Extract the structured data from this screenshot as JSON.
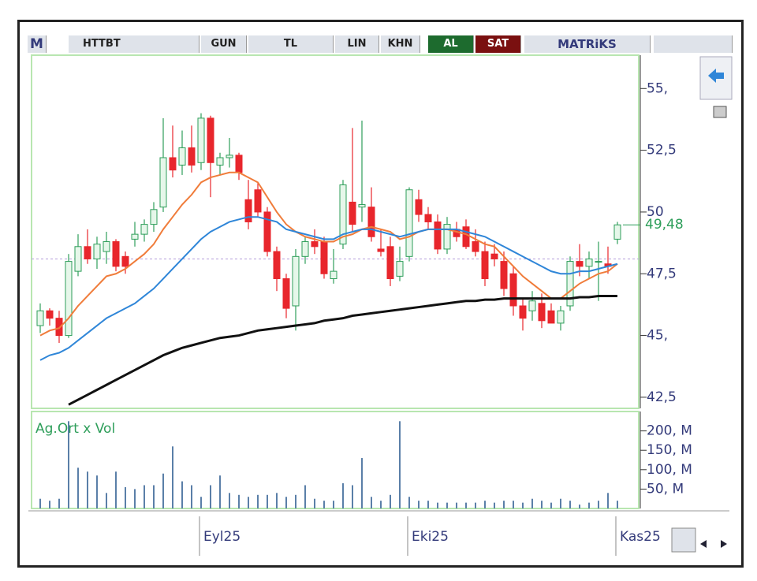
{
  "toolbar": {
    "logo": "M",
    "symbol": "HTTBT",
    "buttons": [
      "GUN",
      "TL",
      "LIN",
      "KHN"
    ],
    "buy": "AL",
    "sell": "SAT",
    "brand": "MATRiKS"
  },
  "chart_data": [
    {
      "type": "candlestick",
      "categories": [
        null,
        null,
        null,
        null,
        null,
        null,
        null,
        null,
        null,
        null,
        null,
        null,
        null,
        null,
        null,
        null,
        null,
        "Eyl25",
        null,
        null,
        null,
        null,
        null,
        null,
        null,
        null,
        null,
        null,
        null,
        null,
        null,
        null,
        null,
        null,
        null,
        null,
        null,
        null,
        null,
        "Eki25",
        null,
        null,
        null,
        null,
        null,
        null,
        null,
        null,
        null,
        null,
        null,
        null,
        null,
        null,
        null,
        null,
        null,
        null,
        null,
        null,
        null,
        "Kas25"
      ],
      "open": [
        45.4,
        46.0,
        45.7,
        45.0,
        47.6,
        48.6,
        48.1,
        48.4,
        48.8,
        48.2,
        48.9,
        49.1,
        49.5,
        50.2,
        52.2,
        51.9,
        52.6,
        52.0,
        53.8,
        51.9,
        52.2,
        52.3,
        50.5,
        50.9,
        50.0,
        48.4,
        47.3,
        46.2,
        48.2,
        48.8,
        48.8,
        47.3,
        48.7,
        50.4,
        50.2,
        50.2,
        48.5,
        48.6,
        47.4,
        48.2,
        50.5,
        49.9,
        49.6,
        48.5,
        49.3,
        49.4,
        48.8,
        48.4,
        48.3,
        48.0,
        47.5,
        46.2,
        46.0,
        46.3,
        46.0,
        45.5,
        46.2,
        48.0,
        47.8,
        48.0,
        47.9,
        48.9
      ],
      "high": [
        46.3,
        46.1,
        46.0,
        48.3,
        49.1,
        49.3,
        49.0,
        49.2,
        48.9,
        48.4,
        49.6,
        49.7,
        50.4,
        53.8,
        53.5,
        53.3,
        53.5,
        54.0,
        53.9,
        52.4,
        53.0,
        52.4,
        51.3,
        51.2,
        50.2,
        48.6,
        47.5,
        48.5,
        49.0,
        49.3,
        49.0,
        48.5,
        51.3,
        53.4,
        53.7,
        51.0,
        49.3,
        49.0,
        48.6,
        51.0,
        50.9,
        50.2,
        49.9,
        49.8,
        49.6,
        49.7,
        49.3,
        48.8,
        48.7,
        48.4,
        47.8,
        46.5,
        46.8,
        46.7,
        46.3,
        46.2,
        48.2,
        48.7,
        48.4,
        48.8,
        48.6,
        49.6
      ],
      "low": [
        45.1,
        45.4,
        44.7,
        44.9,
        47.4,
        47.9,
        47.7,
        47.9,
        47.6,
        47.5,
        48.6,
        48.8,
        49.2,
        50.0,
        51.4,
        51.5,
        51.6,
        51.7,
        50.6,
        51.5,
        51.8,
        51.3,
        49.3,
        49.8,
        48.2,
        46.8,
        45.7,
        45.2,
        47.9,
        48.3,
        47.3,
        47.1,
        48.5,
        49.2,
        49.6,
        48.8,
        48.2,
        47.0,
        47.2,
        48.0,
        49.6,
        49.3,
        48.3,
        48.3,
        48.8,
        48.5,
        48.2,
        47.0,
        47.8,
        46.6,
        45.8,
        45.2,
        45.6,
        45.3,
        45.5,
        45.2,
        46.0,
        47.4,
        47.3,
        46.4,
        47.5,
        48.7
      ],
      "close": [
        46.0,
        45.7,
        45.0,
        48.0,
        48.6,
        48.1,
        48.7,
        48.8,
        47.8,
        47.8,
        49.1,
        49.5,
        50.1,
        52.2,
        51.7,
        52.6,
        51.9,
        53.8,
        52.0,
        52.2,
        52.3,
        51.6,
        49.6,
        50.0,
        48.4,
        47.3,
        46.1,
        48.2,
        48.8,
        48.6,
        47.5,
        47.6,
        51.1,
        49.5,
        50.3,
        49.0,
        48.4,
        47.3,
        48.0,
        50.9,
        49.9,
        49.6,
        48.5,
        49.5,
        49.0,
        48.6,
        48.4,
        47.3,
        48.1,
        46.9,
        46.2,
        45.7,
        46.4,
        45.6,
        45.5,
        46.0,
        48.0,
        47.8,
        48.1,
        48.0,
        47.8,
        49.48
      ],
      "up_color": "#2e9e5a",
      "down_color": "#e8262c",
      "series": [
        {
          "color": "#f07c3a",
          "values": [
            45.0,
            45.2,
            45.3,
            45.7,
            46.2,
            46.6,
            47.0,
            47.4,
            47.5,
            47.7,
            48.0,
            48.3,
            48.7,
            49.3,
            49.8,
            50.3,
            50.7,
            51.2,
            51.4,
            51.5,
            51.6,
            51.6,
            51.4,
            51.2,
            50.6,
            50.0,
            49.5,
            49.2,
            49.0,
            48.9,
            48.8,
            48.8,
            49.0,
            49.1,
            49.3,
            49.4,
            49.3,
            49.2,
            48.9,
            49.0,
            49.2,
            49.3,
            49.3,
            49.3,
            49.2,
            49.1,
            48.9,
            48.7,
            48.6,
            48.2,
            47.8,
            47.4,
            47.1,
            46.8,
            46.5,
            46.5,
            46.8,
            47.1,
            47.3,
            47.5,
            47.6,
            47.9
          ]
        },
        {
          "color": "#2f86d8",
          "values": [
            44.0,
            44.2,
            44.3,
            44.5,
            44.8,
            45.1,
            45.4,
            45.7,
            45.9,
            46.1,
            46.3,
            46.6,
            46.9,
            47.3,
            47.7,
            48.1,
            48.5,
            48.9,
            49.2,
            49.4,
            49.6,
            49.7,
            49.8,
            49.8,
            49.7,
            49.6,
            49.3,
            49.2,
            49.1,
            49.0,
            48.9,
            48.9,
            49.1,
            49.2,
            49.3,
            49.3,
            49.2,
            49.1,
            49.0,
            49.1,
            49.2,
            49.3,
            49.3,
            49.3,
            49.3,
            49.2,
            49.1,
            49.0,
            48.8,
            48.6,
            48.4,
            48.2,
            48.0,
            47.8,
            47.6,
            47.5,
            47.5,
            47.6,
            47.6,
            47.7,
            47.8,
            47.9
          ]
        },
        {
          "color": "#111111",
          "values": [
            null,
            null,
            null,
            42.2,
            42.4,
            42.6,
            42.8,
            43.0,
            43.2,
            43.4,
            43.6,
            43.8,
            44.0,
            44.2,
            44.35,
            44.5,
            44.6,
            44.7,
            44.8,
            44.9,
            44.95,
            45.0,
            45.1,
            45.2,
            45.25,
            45.3,
            45.35,
            45.4,
            45.45,
            45.5,
            45.6,
            45.65,
            45.7,
            45.8,
            45.85,
            45.9,
            45.95,
            46.0,
            46.05,
            46.1,
            46.15,
            46.2,
            46.25,
            46.3,
            46.35,
            46.4,
            46.4,
            46.45,
            46.45,
            46.5,
            46.5,
            46.5,
            46.5,
            46.5,
            46.5,
            46.5,
            46.5,
            46.55,
            46.55,
            46.6,
            46.6,
            46.6
          ]
        }
      ],
      "reference_line": 48.1,
      "last_price": {
        "value": 49.48,
        "label": "49,48"
      },
      "ylim": [
        42.05,
        56.35
      ],
      "yticks": [
        {
          "value": 42.5,
          "label": "42,5"
        },
        {
          "value": 45,
          "label": "45,"
        },
        {
          "value": 47.5,
          "label": "47,5"
        },
        {
          "value": 50,
          "label": "50"
        },
        {
          "value": 52.5,
          "label": "52,5"
        },
        {
          "value": 55,
          "label": "55,"
        }
      ]
    },
    {
      "type": "bar",
      "title": "Ag.Ort x Vol",
      "color": "#5a7fa8",
      "values": [
        25,
        20,
        25,
        225,
        105,
        95,
        85,
        40,
        95,
        55,
        50,
        60,
        60,
        90,
        160,
        70,
        60,
        30,
        60,
        85,
        40,
        35,
        30,
        35,
        35,
        40,
        30,
        35,
        60,
        25,
        20,
        20,
        65,
        60,
        130,
        30,
        20,
        35,
        225,
        30,
        20,
        20,
        15,
        15,
        15,
        15,
        15,
        20,
        15,
        20,
        20,
        15,
        25,
        20,
        15,
        25,
        20,
        10,
        15,
        20,
        40,
        20
      ],
      "ylim": [
        0,
        250
      ],
      "yticks": [
        {
          "value": 50,
          "label": "50, M"
        },
        {
          "value": 100,
          "label": "100, M"
        },
        {
          "value": 150,
          "label": "150, M"
        },
        {
          "value": 200,
          "label": "200, M"
        }
      ]
    }
  ]
}
